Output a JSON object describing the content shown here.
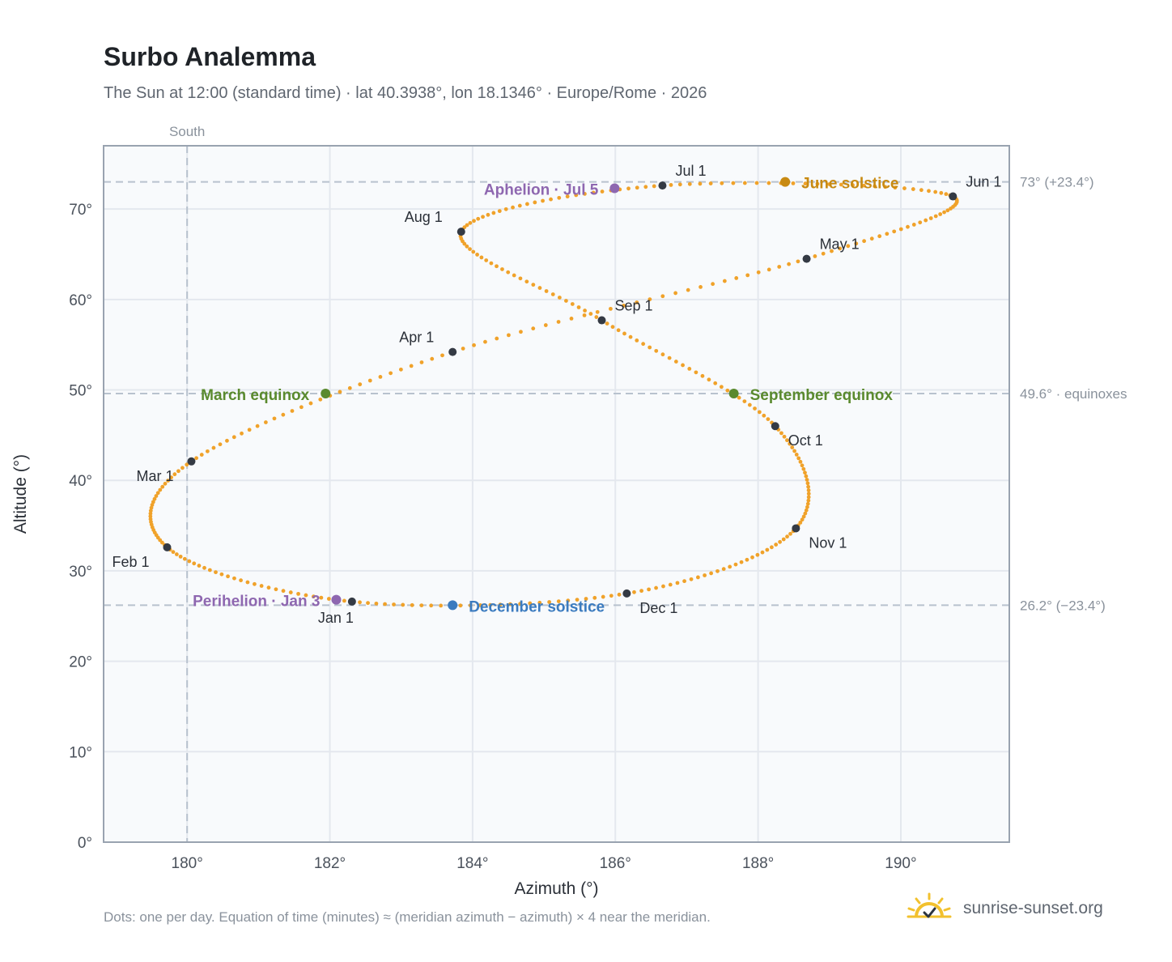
{
  "header": {
    "title": "Surbo Analemma",
    "subtitle": "The Sun at 12:00 (standard time) · lat 40.3938°, lon 18.1346° · Europe/Rome · 2026"
  },
  "footer": {
    "note": "Dots: one per day. Equation of time (minutes) ≈ (meridian azimuth − azimuth) × 4 near the meridian.",
    "brand": "sunrise-sunset.org",
    "brand_icon": "sun-logo-icon"
  },
  "colors": {
    "path": "#f0a22a",
    "month_marker": "#343a44",
    "june_solstice": "#c88a12",
    "equinox": "#5a8a2e",
    "december_solstice": "#3b7bbf",
    "perihelion_aphelion": "#8e67b0",
    "grid": "#e4e8ee",
    "reference_line": "#b8c2ce",
    "plot_bg": "#f8fafc"
  },
  "chart_data": {
    "type": "scatter",
    "xlabel": "Azimuth (°)",
    "ylabel": "Altitude (°)",
    "xlim": [
      178.83,
      191.52
    ],
    "ylim": [
      0,
      77
    ],
    "xticks": [
      180,
      182,
      184,
      186,
      188,
      190
    ],
    "yticks": [
      0,
      10,
      20,
      30,
      40,
      50,
      60,
      70
    ],
    "xtick_labels": [
      "180°",
      "182°",
      "184°",
      "186°",
      "188°",
      "190°"
    ],
    "ytick_labels": [
      "0°",
      "10°",
      "20°",
      "30°",
      "40°",
      "50°",
      "60°",
      "70°"
    ],
    "grid": true,
    "meridian": {
      "azimuth": 180,
      "label": "South"
    },
    "reference_lines": [
      {
        "altitude": 73.0,
        "label": "73° (+23.4°)"
      },
      {
        "altitude": 49.6,
        "label": "49.6° · equinoxes"
      },
      {
        "altitude": 26.2,
        "label": "26.2° (−23.4°)"
      }
    ],
    "month_markers": [
      {
        "label": "Jan 1",
        "az": 182.31,
        "alt": 26.6
      },
      {
        "label": "Feb 1",
        "az": 179.72,
        "alt": 32.6
      },
      {
        "label": "Mar 1",
        "az": 180.06,
        "alt": 42.1
      },
      {
        "label": "Apr 1",
        "az": 183.72,
        "alt": 54.2
      },
      {
        "label": "May 1",
        "az": 188.68,
        "alt": 64.5
      },
      {
        "label": "Jun 1",
        "az": 190.73,
        "alt": 71.4
      },
      {
        "label": "Jul 1",
        "az": 186.66,
        "alt": 72.6
      },
      {
        "label": "Aug 1",
        "az": 183.84,
        "alt": 67.5
      },
      {
        "label": "Sep 1",
        "az": 185.81,
        "alt": 57.7
      },
      {
        "label": "Oct 1",
        "az": 188.24,
        "alt": 46.0
      },
      {
        "label": "Nov 1",
        "az": 188.53,
        "alt": 34.7
      },
      {
        "label": "Dec 1",
        "az": 186.16,
        "alt": 27.5
      }
    ],
    "events": [
      {
        "label": "March equinox",
        "az": 181.94,
        "alt": 49.6,
        "color_key": "equinox"
      },
      {
        "label": "June solstice",
        "az": 188.38,
        "alt": 73.0,
        "color_key": "june_solstice"
      },
      {
        "label": "September equinox",
        "az": 187.66,
        "alt": 49.6,
        "color_key": "equinox"
      },
      {
        "label": "December solstice",
        "az": 183.72,
        "alt": 26.2,
        "color_key": "december_solstice"
      },
      {
        "label": "Perihelion · Jan 3",
        "az": 182.09,
        "alt": 26.8,
        "color_key": "perihelion_aphelion"
      },
      {
        "label": "Aphelion · Jul 5",
        "az": 185.99,
        "alt": 72.3,
        "color_key": "perihelion_aphelion"
      }
    ]
  }
}
